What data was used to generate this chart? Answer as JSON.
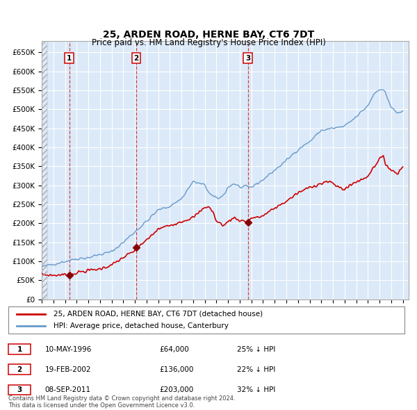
{
  "title": "25, ARDEN ROAD, HERNE BAY, CT6 7DT",
  "subtitle": "Price paid vs. HM Land Registry's House Price Index (HPI)",
  "title_fontsize": 10,
  "subtitle_fontsize": 8.5,
  "bg_color": "#dce9f8",
  "grid_color": "#ffffff",
  "ylim": [
    0,
    680000
  ],
  "yticks": [
    0,
    50000,
    100000,
    150000,
    200000,
    250000,
    300000,
    350000,
    400000,
    450000,
    500000,
    550000,
    600000,
    650000
  ],
  "ytick_labels": [
    "£0",
    "£50K",
    "£100K",
    "£150K",
    "£200K",
    "£250K",
    "£300K",
    "£350K",
    "£400K",
    "£450K",
    "£500K",
    "£550K",
    "£600K",
    "£650K"
  ],
  "xlim_start": 1994.0,
  "xlim_end": 2025.5,
  "xtick_years": [
    1994,
    1995,
    1996,
    1997,
    1998,
    1999,
    2000,
    2001,
    2002,
    2003,
    2004,
    2005,
    2006,
    2007,
    2008,
    2009,
    2010,
    2011,
    2012,
    2013,
    2014,
    2015,
    2016,
    2017,
    2018,
    2019,
    2020,
    2021,
    2022,
    2023,
    2024,
    2025
  ],
  "sale_dates": [
    1996.36,
    2002.12,
    2011.69
  ],
  "sale_prices": [
    64000,
    136000,
    203000
  ],
  "sale_labels": [
    "1",
    "2",
    "3"
  ],
  "line_red_color": "#cc0000",
  "line_blue_color": "#6699cc",
  "marker_color": "#880000",
  "dashed_line_color": "#cc3333",
  "legend_items": [
    "25, ARDEN ROAD, HERNE BAY, CT6 7DT (detached house)",
    "HPI: Average price, detached house, Canterbury"
  ],
  "table_rows": [
    [
      "1",
      "10-MAY-1996",
      "£64,000",
      "25% ↓ HPI"
    ],
    [
      "2",
      "19-FEB-2002",
      "£136,000",
      "22% ↓ HPI"
    ],
    [
      "3",
      "08-SEP-2011",
      "£203,000",
      "32% ↓ HPI"
    ]
  ],
  "footer_text": "Contains HM Land Registry data © Crown copyright and database right 2024.\nThis data is licensed under the Open Government Licence v3.0.",
  "label_box_color": "#ffffff",
  "label_box_edge": "#cc0000"
}
